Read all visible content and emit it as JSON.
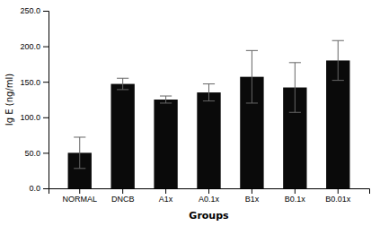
{
  "chart_data": {
    "type": "bar",
    "categories": [
      "NORMAL",
      "DNCB",
      "A1x",
      "A0.1x",
      "B1x",
      "B0.1x",
      "B0.01x"
    ],
    "values": [
      50.0,
      147.0,
      125.0,
      135.0,
      157.0,
      142.0,
      180.0
    ],
    "errors": [
      22.0,
      8.0,
      5.0,
      12.0,
      37.0,
      35.0,
      28.0
    ],
    "color": "#0a0a0a",
    "xlabel": "Groups",
    "ylabel": "Ig E (ng/ml)",
    "ylim": [
      0,
      250
    ],
    "yticks": [
      {
        "value": 0.0,
        "label": "0.0"
      },
      {
        "value": 50.0,
        "label": "50.0"
      },
      {
        "value": 100.0,
        "label": "100.0"
      },
      {
        "value": 150.0,
        "label": "150.0"
      },
      {
        "value": 200.0,
        "label": "200.0"
      },
      {
        "value": 250.0,
        "label": "250.0"
      }
    ],
    "grid": false
  }
}
